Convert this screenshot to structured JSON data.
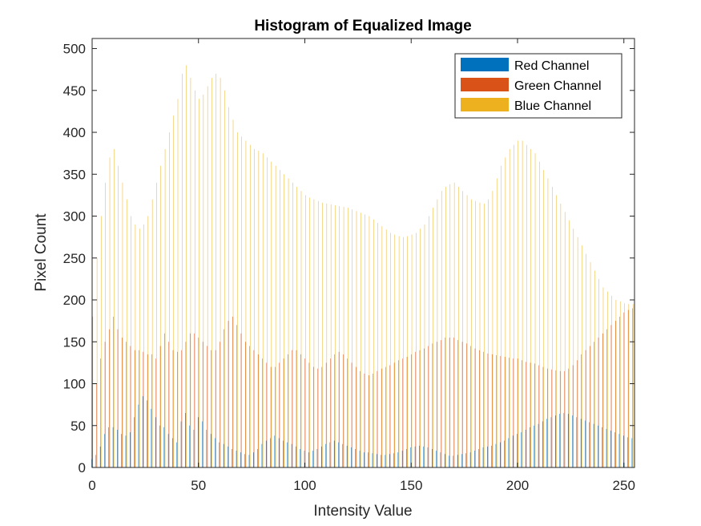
{
  "chart_data": {
    "type": "bar",
    "title": "Histogram of Equalized  Image",
    "xlabel": "Intensity Value",
    "ylabel": "Pixel Count",
    "xlim": [
      0,
      255
    ],
    "ylim": [
      0,
      512
    ],
    "xticks": [
      0,
      50,
      100,
      150,
      200,
      250
    ],
    "yticks": [
      0,
      50,
      100,
      150,
      200,
      250,
      300,
      350,
      400,
      450,
      500
    ],
    "grid": false,
    "legend_position": "top-right",
    "colors": {
      "red": "#0072BD",
      "green": "#D95319",
      "blue": "#EDB120",
      "axis": "#262626"
    },
    "x": [
      0,
      2,
      4,
      6,
      8,
      10,
      12,
      14,
      16,
      18,
      20,
      22,
      24,
      26,
      28,
      30,
      32,
      34,
      36,
      38,
      40,
      42,
      44,
      46,
      48,
      50,
      52,
      54,
      56,
      58,
      60,
      62,
      64,
      66,
      68,
      70,
      72,
      74,
      76,
      78,
      80,
      82,
      84,
      86,
      88,
      90,
      92,
      94,
      96,
      98,
      100,
      102,
      104,
      106,
      108,
      110,
      112,
      114,
      116,
      118,
      120,
      122,
      124,
      126,
      128,
      130,
      132,
      134,
      136,
      138,
      140,
      142,
      144,
      146,
      148,
      150,
      152,
      154,
      156,
      158,
      160,
      162,
      164,
      166,
      168,
      170,
      172,
      174,
      176,
      178,
      180,
      182,
      184,
      186,
      188,
      190,
      192,
      194,
      196,
      198,
      200,
      202,
      204,
      206,
      208,
      210,
      212,
      214,
      216,
      218,
      220,
      222,
      224,
      226,
      228,
      230,
      232,
      234,
      236,
      238,
      240,
      242,
      244,
      246,
      248,
      250,
      252,
      254
    ],
    "series": [
      {
        "name": "Red Channel",
        "values": [
          10,
          15,
          25,
          40,
          48,
          48,
          45,
          40,
          38,
          42,
          60,
          75,
          85,
          80,
          70,
          60,
          50,
          48,
          40,
          35,
          30,
          55,
          65,
          50,
          45,
          60,
          55,
          45,
          40,
          35,
          30,
          28,
          25,
          22,
          20,
          18,
          16,
          15,
          18,
          22,
          28,
          32,
          35,
          38,
          35,
          32,
          30,
          28,
          25,
          22,
          20,
          18,
          20,
          22,
          25,
          28,
          30,
          32,
          30,
          28,
          26,
          24,
          22,
          20,
          18,
          18,
          17,
          16,
          15,
          15,
          16,
          17,
          18,
          20,
          22,
          24,
          25,
          26,
          25,
          24,
          22,
          20,
          18,
          16,
          14,
          14,
          15,
          16,
          17,
          18,
          20,
          22,
          24,
          25,
          26,
          28,
          30,
          32,
          35,
          38,
          40,
          42,
          45,
          48,
          50,
          52,
          55,
          58,
          60,
          62,
          64,
          65,
          64,
          62,
          60,
          58,
          56,
          54,
          52,
          50,
          48,
          46,
          44,
          42,
          40,
          38,
          36,
          35
        ]
      },
      {
        "name": "Green Channel",
        "values": [
          70,
          100,
          130,
          150,
          165,
          180,
          165,
          155,
          150,
          145,
          140,
          140,
          138,
          135,
          135,
          130,
          145,
          160,
          150,
          140,
          138,
          140,
          150,
          160,
          160,
          155,
          150,
          145,
          140,
          140,
          150,
          165,
          175,
          180,
          170,
          160,
          150,
          145,
          140,
          135,
          130,
          125,
          120,
          120,
          125,
          130,
          135,
          140,
          140,
          135,
          130,
          125,
          120,
          118,
          120,
          125,
          130,
          135,
          138,
          135,
          130,
          125,
          120,
          115,
          112,
          110,
          112,
          115,
          118,
          120,
          122,
          125,
          128,
          130,
          132,
          135,
          138,
          140,
          142,
          145,
          148,
          150,
          152,
          155,
          155,
          155,
          152,
          150,
          148,
          145,
          142,
          140,
          138,
          136,
          135,
          134,
          133,
          132,
          131,
          130,
          130,
          128,
          126,
          125,
          124,
          122,
          120,
          118,
          117,
          116,
          115,
          115,
          118,
          122,
          128,
          135,
          140,
          145,
          150,
          155,
          160,
          165,
          170,
          175,
          180,
          185,
          188,
          190
        ]
      },
      {
        "name": "Blue Channel",
        "values": [
          180,
          250,
          300,
          340,
          370,
          380,
          360,
          340,
          320,
          300,
          290,
          285,
          290,
          300,
          320,
          340,
          360,
          380,
          400,
          420,
          440,
          470,
          480,
          465,
          450,
          440,
          445,
          455,
          465,
          470,
          465,
          450,
          430,
          415,
          400,
          395,
          390,
          385,
          380,
          378,
          375,
          370,
          365,
          360,
          355,
          350,
          345,
          340,
          335,
          330,
          325,
          322,
          320,
          318,
          316,
          315,
          314,
          313,
          312,
          311,
          310,
          308,
          306,
          304,
          302,
          300,
          296,
          292,
          288,
          284,
          280,
          278,
          276,
          275,
          276,
          278,
          280,
          285,
          290,
          300,
          310,
          320,
          330,
          335,
          338,
          340,
          335,
          330,
          325,
          320,
          318,
          316,
          315,
          320,
          330,
          345,
          360,
          370,
          380,
          385,
          390,
          390,
          385,
          380,
          375,
          365,
          355,
          345,
          335,
          325,
          315,
          305,
          295,
          285,
          275,
          265,
          255,
          245,
          235,
          225,
          215,
          210,
          205,
          200,
          198,
          196,
          195,
          195
        ]
      }
    ]
  },
  "legend": {
    "items": [
      {
        "label": "Red Channel",
        "color": "#0072BD"
      },
      {
        "label": "Green Channel",
        "color": "#D95319"
      },
      {
        "label": "Blue Channel",
        "color": "#EDB120"
      }
    ]
  }
}
